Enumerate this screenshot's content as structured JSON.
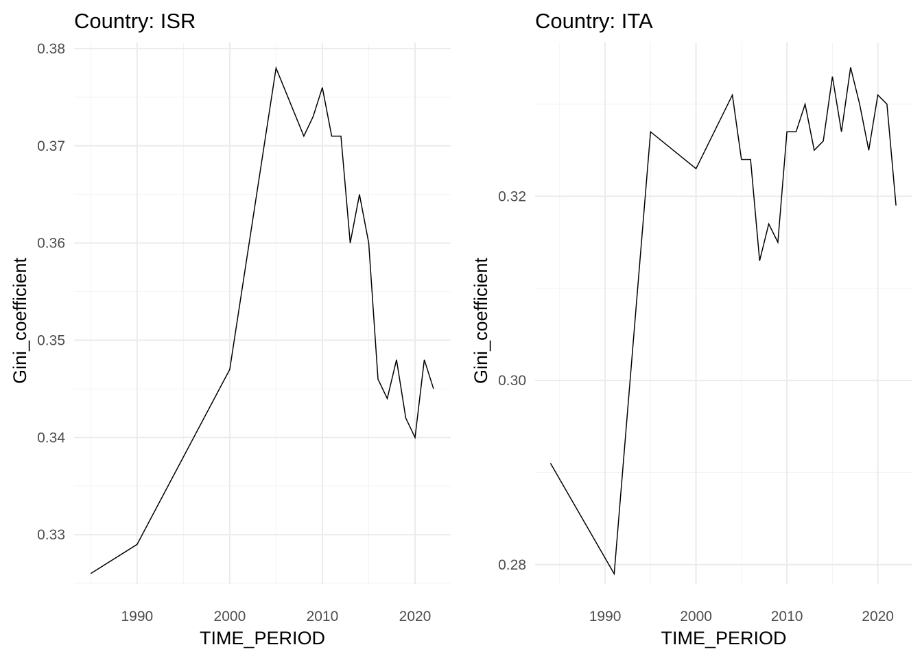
{
  "chart_data": [
    {
      "type": "line",
      "title": "Country: ISR",
      "xlabel": "TIME_PERIOD",
      "ylabel": "Gini_coefficient",
      "xlim": [
        1983.2,
        2023.85
      ],
      "ylim": [
        0.32493,
        0.38063
      ],
      "xticks": [
        1990,
        2000,
        2010,
        2020
      ],
      "xtick_labels": [
        "1990",
        "2000",
        "2010",
        "2020"
      ],
      "xminor": [
        1985,
        1995,
        2005,
        2015
      ],
      "yticks": [
        0.33,
        0.34,
        0.35,
        0.36,
        0.37,
        0.38
      ],
      "ytick_labels": [
        "0.33",
        "0.34",
        "0.35",
        "0.36",
        "0.37",
        "0.38"
      ],
      "yminor": [
        0.325,
        0.335,
        0.345,
        0.355,
        0.365,
        0.375
      ],
      "grid": true,
      "line_color": "#000000",
      "x": [
        1985,
        1990,
        2000,
        2005,
        2008,
        2009,
        2010,
        2011,
        2012,
        2013,
        2014,
        2015,
        2016,
        2017,
        2018,
        2019,
        2020,
        2021,
        2022
      ],
      "y": [
        0.326,
        0.329,
        0.347,
        0.378,
        0.371,
        0.373,
        0.376,
        0.371,
        0.371,
        0.36,
        0.365,
        0.36,
        0.346,
        0.344,
        0.348,
        0.342,
        0.34,
        0.348,
        0.345
      ]
    },
    {
      "type": "line",
      "title": "Country: ITA",
      "xlabel": "TIME_PERIOD",
      "ylabel": "Gini_coefficient",
      "xlim": [
        1982.3,
        2023.8
      ],
      "ylim": [
        0.2779,
        0.3367
      ],
      "xticks": [
        1990,
        2000,
        2010,
        2020
      ],
      "xtick_labels": [
        "1990",
        "2000",
        "2010",
        "2020"
      ],
      "xminor": [
        1985,
        1995,
        2005,
        2015
      ],
      "yticks": [
        0.28,
        0.3,
        0.32
      ],
      "ytick_labels": [
        "0.28",
        "0.30",
        "0.32"
      ],
      "yminor": [
        0.29,
        0.31,
        0.33
      ],
      "grid": true,
      "line_color": "#000000",
      "x": [
        1984,
        1991,
        1995,
        2000,
        2004,
        2005,
        2006,
        2007,
        2008,
        2009,
        2010,
        2011,
        2012,
        2013,
        2014,
        2015,
        2016,
        2017,
        2018,
        2019,
        2020,
        2021,
        2022
      ],
      "y": [
        0.291,
        0.279,
        0.327,
        0.323,
        0.331,
        0.324,
        0.324,
        0.313,
        0.317,
        0.315,
        0.327,
        0.327,
        0.33,
        0.325,
        0.326,
        0.333,
        0.327,
        0.334,
        0.33,
        0.325,
        0.331,
        0.33,
        0.319
      ]
    }
  ]
}
